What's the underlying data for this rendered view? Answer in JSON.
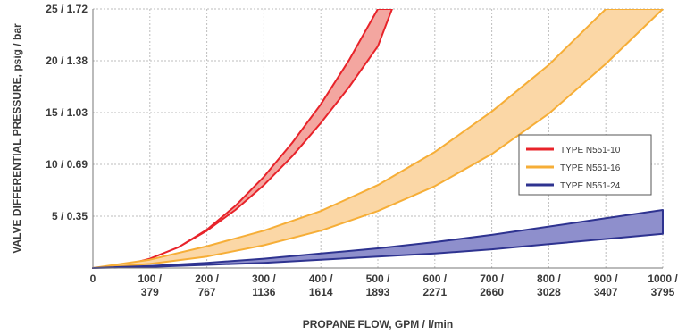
{
  "chart_data": {
    "type": "area",
    "xlabel": "PROPANE FLOW, GPM / l/min",
    "ylabel": "VALVE DIFFERENTIAL PRESSURE, psig / bar",
    "xlim": [
      0,
      1000
    ],
    "ylim": [
      0,
      25
    ],
    "grid": true,
    "legend_position": "right",
    "x_ticks": [
      {
        "value": 0,
        "line1": "0",
        "line2": ""
      },
      {
        "value": 100,
        "line1": "100 /",
        "line2": "379"
      },
      {
        "value": 200,
        "line1": "200 /",
        "line2": "767"
      },
      {
        "value": 300,
        "line1": "300 /",
        "line2": "1136"
      },
      {
        "value": 400,
        "line1": "400 /",
        "line2": "1614"
      },
      {
        "value": 500,
        "line1": "500 /",
        "line2": "1893"
      },
      {
        "value": 600,
        "line1": "600 /",
        "line2": "2271"
      },
      {
        "value": 700,
        "line1": "700 /",
        "line2": "2660"
      },
      {
        "value": 800,
        "line1": "800 /",
        "line2": "3028"
      },
      {
        "value": 900,
        "line1": "900 /",
        "line2": "3407"
      },
      {
        "value": 1000,
        "line1": "1000 /",
        "line2": "3795"
      }
    ],
    "y_ticks": [
      {
        "value": 5,
        "label": "5 / 0.35"
      },
      {
        "value": 10,
        "label": "10 / 0.69"
      },
      {
        "value": 15,
        "label": "15 / 1.03"
      },
      {
        "value": 20,
        "label": "20 / 1.38"
      },
      {
        "value": 25,
        "label": "25 / 1.72"
      }
    ],
    "series": [
      {
        "name": "TYPE N551-10",
        "color": "#e8232a",
        "fill": "#f3a6a0",
        "upper": [
          [
            0,
            0
          ],
          [
            50,
            0.2
          ],
          [
            100,
            0.9
          ],
          [
            150,
            2.0
          ],
          [
            200,
            3.7
          ],
          [
            250,
            6.0
          ],
          [
            300,
            8.8
          ],
          [
            350,
            12.1
          ],
          [
            400,
            15.8
          ],
          [
            450,
            20.1
          ],
          [
            500,
            25.0
          ]
        ],
        "lower": [
          [
            0,
            0
          ],
          [
            50,
            0.2
          ],
          [
            100,
            0.9
          ],
          [
            150,
            2.0
          ],
          [
            200,
            3.6
          ],
          [
            250,
            5.6
          ],
          [
            300,
            8.0
          ],
          [
            350,
            10.8
          ],
          [
            400,
            14.0
          ],
          [
            450,
            17.5
          ],
          [
            500,
            21.4
          ],
          [
            525,
            25.0
          ]
        ]
      },
      {
        "name": "TYPE N551-16",
        "color": "#f6ae37",
        "fill": "#fbd7a6",
        "upper": [
          [
            0,
            0
          ],
          [
            100,
            0.8
          ],
          [
            200,
            2.1
          ],
          [
            300,
            3.6
          ],
          [
            400,
            5.5
          ],
          [
            500,
            8.0
          ],
          [
            600,
            11.2
          ],
          [
            700,
            15.1
          ],
          [
            800,
            19.6
          ],
          [
            900,
            25.0
          ]
        ],
        "lower": [
          [
            0,
            0
          ],
          [
            100,
            0.4
          ],
          [
            200,
            1.1
          ],
          [
            300,
            2.2
          ],
          [
            400,
            3.6
          ],
          [
            500,
            5.5
          ],
          [
            600,
            7.9
          ],
          [
            700,
            11.0
          ],
          [
            800,
            14.9
          ],
          [
            900,
            19.7
          ],
          [
            1000,
            25.0
          ]
        ]
      },
      {
        "name": "TYPE N551-24",
        "color": "#2e3390",
        "fill": "#8e8fcc",
        "upper": [
          [
            0,
            0
          ],
          [
            100,
            0.2
          ],
          [
            200,
            0.5
          ],
          [
            300,
            0.9
          ],
          [
            400,
            1.4
          ],
          [
            500,
            1.9
          ],
          [
            600,
            2.5
          ],
          [
            700,
            3.2
          ],
          [
            800,
            4.0
          ],
          [
            900,
            4.8
          ],
          [
            1000,
            5.6
          ]
        ],
        "lower": [
          [
            0,
            0
          ],
          [
            100,
            0.1
          ],
          [
            200,
            0.3
          ],
          [
            300,
            0.5
          ],
          [
            400,
            0.8
          ],
          [
            500,
            1.1
          ],
          [
            600,
            1.4
          ],
          [
            700,
            1.8
          ],
          [
            800,
            2.3
          ],
          [
            900,
            2.8
          ],
          [
            1000,
            3.3
          ]
        ]
      }
    ]
  }
}
